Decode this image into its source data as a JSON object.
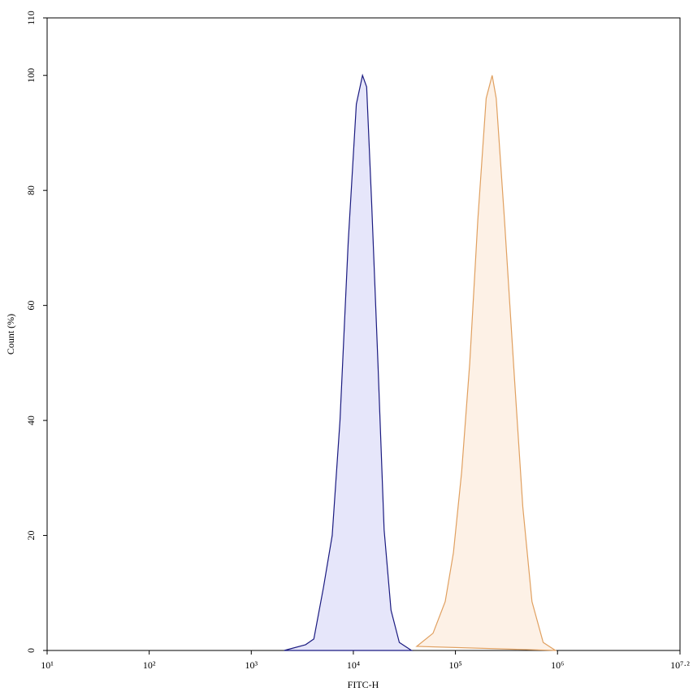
{
  "chart_data": {
    "type": "histogram-overlay",
    "xlabel": "FITC-H",
    "ylabel": "Count (%)",
    "xscale": "log",
    "xlim": [
      10,
      15848931.92
    ],
    "xticks": [
      {
        "value": 10,
        "label": "10¹"
      },
      {
        "value": 100,
        "label": "10²"
      },
      {
        "value": 1000,
        "label": "10³"
      },
      {
        "value": 10000,
        "label": "10⁴"
      },
      {
        "value": 100000,
        "label": "10⁵"
      },
      {
        "value": 1000000,
        "label": "10⁶"
      },
      {
        "value": 15848931.92,
        "label": "10⁷·²"
      }
    ],
    "ylim": [
      0,
      110
    ],
    "yticks": [
      0,
      20,
      40,
      60,
      80,
      100,
      110
    ],
    "series": [
      {
        "color": "#1a1a80",
        "fill": "#e6e6fa",
        "x": [
          2100,
          3400,
          4100,
          5100,
          6200,
          7400,
          8900,
          10700,
          12300,
          13500,
          15100,
          17400,
          20000,
          23400,
          28200,
          37200
        ],
        "values": [
          0,
          1,
          2,
          11,
          20,
          40,
          71,
          95,
          100,
          98,
          78,
          50,
          21,
          7,
          1.4,
          0
        ]
      },
      {
        "color": "#e0a060",
        "fill": "#fdf1e6",
        "x": [
          41700,
          60300,
          79400,
          95500,
          115000,
          138000,
          166000,
          200000,
          229000,
          251000,
          302000,
          380000,
          457000,
          562000,
          724000,
          955000
        ],
        "values": [
          0.7,
          3,
          8.5,
          17,
          31,
          50,
          75,
          96,
          100,
          96,
          75,
          47,
          25,
          8.5,
          1.4,
          0
        ]
      }
    ]
  }
}
